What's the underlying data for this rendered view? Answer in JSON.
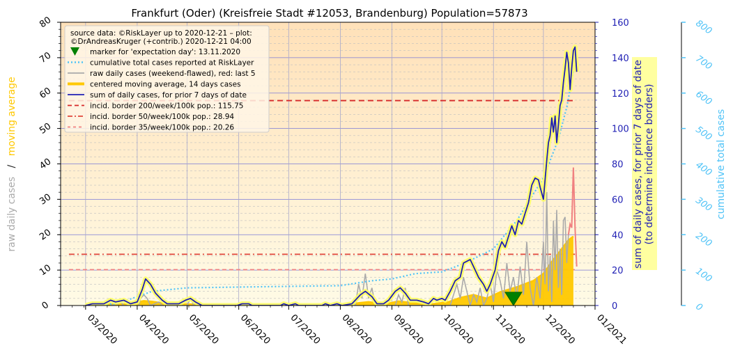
{
  "chart_data": {
    "type": "line",
    "title": "Frankfurt (Oder) (Kreisfreie Stadt #12053, Brandenburg) Population=57873",
    "left_axis": {
      "label_parts": [
        "raw daily cases",
        "/",
        "moving average"
      ],
      "label_colors": [
        "#aaaaaa",
        "#222222",
        "#ffc800"
      ],
      "ylim": [
        0,
        80
      ],
      "ticks": [
        "0",
        "10",
        "20",
        "30",
        "40",
        "50",
        "60",
        "70",
        "80"
      ]
    },
    "right_axis": {
      "label_lines": [
        "sum of daily cases, for prior 7 days of date",
        "(to determine incidence borders)"
      ],
      "ylim": [
        0,
        160
      ],
      "ticks": [
        "0",
        "20",
        "40",
        "60",
        "80",
        "100",
        "120",
        "140",
        "160"
      ],
      "color": "#1f1fb4"
    },
    "far_right_axis": {
      "label": "cumulative total cases",
      "ylim": [
        0,
        800
      ],
      "ticks": [
        "0",
        "100",
        "200",
        "300",
        "400",
        "500",
        "600",
        "700",
        "800"
      ],
      "color": "#4fc3f7"
    },
    "x_axis": {
      "range": [
        "2020-02-15",
        "2021-01-01"
      ],
      "tick_dates": [
        "2020-03-01",
        "2020-04-01",
        "2020-05-01",
        "2020-06-01",
        "2020-07-01",
        "2020-08-01",
        "2020-09-01",
        "2020-10-01",
        "2020-11-01",
        "2020-12-01",
        "2021-01-01"
      ],
      "tick_labels": [
        "03/2020",
        "04/2020",
        "05/2020",
        "06/2020",
        "07/2020",
        "08/2020",
        "09/2020",
        "10/2020",
        "11/2020",
        "12/2020",
        "01/2021"
      ]
    },
    "legend": {
      "placement": "top-left",
      "source_lines": [
        "source data: ©RiskLayer up to 2020-12-21 – plot:",
        "©DrAndreasKruger (+contrib.) 2020-12-21 04:00"
      ],
      "entries": [
        {
          "label": "marker for 'expectation day': 13.11.2020",
          "style": "triangle",
          "color": "#008000"
        },
        {
          "label": "cumulative total cases reported at RiskLayer",
          "style": "dotted",
          "color": "#4fc3f7"
        },
        {
          "label": "raw daily cases (weekend-flawed), red: last 5",
          "style": "solid",
          "color": "#aaaaaa"
        },
        {
          "label": "centered moving average, 14 days cases",
          "style": "thick",
          "color": "#ffc800"
        },
        {
          "label": "sum of daily cases, for prior 7 days of date",
          "style": "solid",
          "color": "#1f1fb4"
        },
        {
          "label": "incid. border 200/week/100k pop.: 115.75",
          "style": "dashed",
          "color": "#d62728"
        },
        {
          "label": "incid. border 50/week/100k pop.: 28.94",
          "style": "dashdot",
          "color": "#e0443a"
        },
        {
          "label": "incid. border 35/week/100k pop.: 20.26",
          "style": "dashed-light",
          "color": "#f08080"
        }
      ]
    },
    "incidence_borders": [
      {
        "value": 115.75,
        "start": "2020-02-20",
        "end": "2020-12-20",
        "color": "#d62728"
      },
      {
        "value": 28.94,
        "start": "2020-02-20",
        "end": "2020-12-20",
        "color": "#e0443a"
      },
      {
        "value": 20.26,
        "start": "2020-02-20",
        "end": "2020-12-20",
        "color": "#f08080"
      }
    ],
    "expectation_day": "2020-11-13",
    "series": {
      "sum7": {
        "name": "sum of daily cases, for prior 7 days of date",
        "points": [
          [
            "2020-03-01",
            0
          ],
          [
            "2020-03-05",
            1
          ],
          [
            "2020-03-12",
            1
          ],
          [
            "2020-03-16",
            3
          ],
          [
            "2020-03-19",
            2
          ],
          [
            "2020-03-24",
            3
          ],
          [
            "2020-03-28",
            1
          ],
          [
            "2020-04-01",
            2
          ],
          [
            "2020-04-04",
            9
          ],
          [
            "2020-04-06",
            15
          ],
          [
            "2020-04-09",
            12
          ],
          [
            "2020-04-12",
            7
          ],
          [
            "2020-04-16",
            3
          ],
          [
            "2020-04-19",
            1
          ],
          [
            "2020-04-26",
            1
          ],
          [
            "2020-04-30",
            3
          ],
          [
            "2020-05-03",
            4
          ],
          [
            "2020-05-06",
            2
          ],
          [
            "2020-05-10",
            0
          ],
          [
            "2020-05-31",
            0
          ],
          [
            "2020-06-03",
            1
          ],
          [
            "2020-06-07",
            1
          ],
          [
            "2020-06-09",
            0
          ],
          [
            "2020-06-26",
            0
          ],
          [
            "2020-06-28",
            1
          ],
          [
            "2020-07-01",
            0
          ],
          [
            "2020-07-05",
            1
          ],
          [
            "2020-07-07",
            0
          ],
          [
            "2020-07-21",
            0
          ],
          [
            "2020-07-23",
            1
          ],
          [
            "2020-07-26",
            0
          ],
          [
            "2020-07-30",
            1
          ],
          [
            "2020-08-02",
            0
          ],
          [
            "2020-08-08",
            1
          ],
          [
            "2020-08-13",
            6
          ],
          [
            "2020-08-16",
            8
          ],
          [
            "2020-08-20",
            5
          ],
          [
            "2020-08-23",
            1
          ],
          [
            "2020-08-27",
            1
          ],
          [
            "2020-08-30",
            3
          ],
          [
            "2020-09-03",
            8
          ],
          [
            "2020-09-06",
            10
          ],
          [
            "2020-09-09",
            7
          ],
          [
            "2020-09-12",
            3
          ],
          [
            "2020-09-16",
            3
          ],
          [
            "2020-09-20",
            2
          ],
          [
            "2020-09-23",
            1
          ],
          [
            "2020-09-26",
            4
          ],
          [
            "2020-09-28",
            3
          ],
          [
            "2020-10-01",
            4
          ],
          [
            "2020-10-03",
            3
          ],
          [
            "2020-10-06",
            8
          ],
          [
            "2020-10-09",
            14
          ],
          [
            "2020-10-12",
            16
          ],
          [
            "2020-10-14",
            24
          ],
          [
            "2020-10-16",
            25
          ],
          [
            "2020-10-18",
            26
          ],
          [
            "2020-10-21",
            20
          ],
          [
            "2020-10-23",
            16
          ],
          [
            "2020-10-26",
            12
          ],
          [
            "2020-10-28",
            8
          ],
          [
            "2020-10-30",
            12
          ],
          [
            "2020-11-02",
            20
          ],
          [
            "2020-11-04",
            31
          ],
          [
            "2020-11-06",
            36
          ],
          [
            "2020-11-08",
            33
          ],
          [
            "2020-11-10",
            39
          ],
          [
            "2020-11-12",
            45
          ],
          [
            "2020-11-14",
            40
          ],
          [
            "2020-11-16",
            48
          ],
          [
            "2020-11-18",
            46
          ],
          [
            "2020-11-20",
            52
          ],
          [
            "2020-11-22",
            58
          ],
          [
            "2020-11-24",
            68
          ],
          [
            "2020-11-26",
            72
          ],
          [
            "2020-11-28",
            71
          ],
          [
            "2020-11-29",
            67
          ],
          [
            "2020-12-01",
            60
          ],
          [
            "2020-12-03",
            82
          ],
          [
            "2020-12-04",
            92
          ],
          [
            "2020-12-05",
            96
          ],
          [
            "2020-12-06",
            106
          ],
          [
            "2020-12-07",
            98
          ],
          [
            "2020-12-08",
            107
          ],
          [
            "2020-12-09",
            92
          ],
          [
            "2020-12-10",
            102
          ],
          [
            "2020-12-11",
            113
          ],
          [
            "2020-12-12",
            116
          ],
          [
            "2020-12-13",
            126
          ],
          [
            "2020-12-14",
            134
          ],
          [
            "2020-12-15",
            143
          ],
          [
            "2020-12-16",
            137
          ],
          [
            "2020-12-17",
            122
          ],
          [
            "2020-12-18",
            134
          ],
          [
            "2020-12-19",
            144
          ],
          [
            "2020-12-20",
            146
          ],
          [
            "2020-12-21",
            132
          ]
        ]
      },
      "moving_average": {
        "name": "centered moving average, 14 days cases",
        "points": [
          [
            "2020-03-01",
            0
          ],
          [
            "2020-03-15",
            0.3
          ],
          [
            "2020-03-25",
            0.4
          ],
          [
            "2020-04-05",
            1.3
          ],
          [
            "2020-04-10",
            1.1
          ],
          [
            "2020-04-20",
            0.4
          ],
          [
            "2020-05-01",
            0.4
          ],
          [
            "2020-05-15",
            0.1
          ],
          [
            "2020-06-15",
            0
          ],
          [
            "2020-08-01",
            0
          ],
          [
            "2020-08-12",
            0.7
          ],
          [
            "2020-08-18",
            1.0
          ],
          [
            "2020-08-28",
            0.4
          ],
          [
            "2020-09-05",
            1.2
          ],
          [
            "2020-09-12",
            0.8
          ],
          [
            "2020-09-25",
            0.4
          ],
          [
            "2020-10-05",
            1.0
          ],
          [
            "2020-10-12",
            2.2
          ],
          [
            "2020-10-20",
            3.0
          ],
          [
            "2020-10-28",
            2.0
          ],
          [
            "2020-11-05",
            3.8
          ],
          [
            "2020-11-15",
            5.2
          ],
          [
            "2020-11-25",
            7.0
          ],
          [
            "2020-12-01",
            9.0
          ],
          [
            "2020-12-07",
            13.0
          ],
          [
            "2020-12-12",
            16.0
          ],
          [
            "2020-12-16",
            18.5
          ],
          [
            "2020-12-19",
            19.5
          ]
        ]
      },
      "raw_daily": {
        "name": "raw daily cases (weekend-flawed)",
        "points": [
          [
            "2020-03-05",
            0
          ],
          [
            "2020-03-10",
            0
          ],
          [
            "2020-03-15",
            1
          ],
          [
            "2020-03-17",
            0
          ],
          [
            "2020-03-22",
            1
          ],
          [
            "2020-03-24",
            0
          ],
          [
            "2020-04-02",
            0
          ],
          [
            "2020-04-03",
            2
          ],
          [
            "2020-04-05",
            3
          ],
          [
            "2020-04-07",
            2
          ],
          [
            "2020-04-09",
            0
          ],
          [
            "2020-04-14",
            1
          ],
          [
            "2020-04-16",
            0
          ],
          [
            "2020-05-01",
            0
          ],
          [
            "2020-05-03",
            2
          ],
          [
            "2020-05-05",
            0
          ],
          [
            "2020-08-10",
            0
          ],
          [
            "2020-08-12",
            6
          ],
          [
            "2020-08-14",
            2
          ],
          [
            "2020-08-16",
            9
          ],
          [
            "2020-08-18",
            2
          ],
          [
            "2020-08-20",
            5
          ],
          [
            "2020-08-22",
            0
          ],
          [
            "2020-09-03",
            0
          ],
          [
            "2020-09-05",
            3
          ],
          [
            "2020-09-07",
            1
          ],
          [
            "2020-09-09",
            5
          ],
          [
            "2020-09-11",
            0
          ],
          [
            "2020-10-06",
            0
          ],
          [
            "2020-10-08",
            3
          ],
          [
            "2020-10-10",
            6
          ],
          [
            "2020-10-12",
            2
          ],
          [
            "2020-10-14",
            8
          ],
          [
            "2020-10-16",
            4
          ],
          [
            "2020-10-18",
            0
          ],
          [
            "2020-10-20",
            3
          ],
          [
            "2020-10-22",
            1
          ],
          [
            "2020-10-24",
            5
          ],
          [
            "2020-10-26",
            0
          ],
          [
            "2020-10-28",
            2
          ],
          [
            "2020-10-30",
            6
          ],
          [
            "2020-11-01",
            1
          ],
          [
            "2020-11-03",
            10
          ],
          [
            "2020-11-05",
            7
          ],
          [
            "2020-11-07",
            2
          ],
          [
            "2020-11-09",
            12
          ],
          [
            "2020-11-11",
            4
          ],
          [
            "2020-11-13",
            8
          ],
          [
            "2020-11-15",
            2
          ],
          [
            "2020-11-17",
            11
          ],
          [
            "2020-11-19",
            3
          ],
          [
            "2020-11-21",
            18
          ],
          [
            "2020-11-23",
            5
          ],
          [
            "2020-11-25",
            0
          ],
          [
            "2020-11-27",
            8
          ],
          [
            "2020-11-29",
            2
          ],
          [
            "2020-12-01",
            18
          ],
          [
            "2020-12-02",
            6
          ],
          [
            "2020-12-03",
            32
          ],
          [
            "2020-12-04",
            4
          ],
          [
            "2020-12-05",
            14
          ],
          [
            "2020-12-06",
            1
          ],
          [
            "2020-12-07",
            24
          ],
          [
            "2020-12-08",
            10
          ],
          [
            "2020-12-09",
            27
          ],
          [
            "2020-12-10",
            5
          ],
          [
            "2020-12-11",
            16
          ],
          [
            "2020-12-12",
            3
          ],
          [
            "2020-12-13",
            24
          ],
          [
            "2020-12-14",
            25
          ],
          [
            "2020-12-15",
            12
          ],
          [
            "2020-12-16",
            20
          ]
        ]
      },
      "raw_daily_last5": {
        "name": "red: last 5",
        "points": [
          [
            "2020-12-16",
            20
          ],
          [
            "2020-12-17",
            23
          ],
          [
            "2020-12-18",
            22
          ],
          [
            "2020-12-19",
            39
          ],
          [
            "2020-12-20",
            22
          ],
          [
            "2020-12-21",
            11
          ]
        ]
      },
      "cumulative": {
        "name": "cumulative total cases reported at RiskLayer",
        "points": [
          [
            "2020-03-01",
            0
          ],
          [
            "2020-03-20",
            5
          ],
          [
            "2020-04-10",
            40
          ],
          [
            "2020-05-01",
            50
          ],
          [
            "2020-06-01",
            52
          ],
          [
            "2020-07-01",
            54
          ],
          [
            "2020-08-01",
            56
          ],
          [
            "2020-08-20",
            70
          ],
          [
            "2020-09-01",
            75
          ],
          [
            "2020-09-15",
            90
          ],
          [
            "2020-10-01",
            95
          ],
          [
            "2020-10-15",
            120
          ],
          [
            "2020-11-01",
            160
          ],
          [
            "2020-11-15",
            240
          ],
          [
            "2020-12-01",
            360
          ],
          [
            "2020-12-10",
            470
          ],
          [
            "2020-12-15",
            560
          ],
          [
            "2020-12-21",
            710
          ]
        ]
      }
    }
  }
}
